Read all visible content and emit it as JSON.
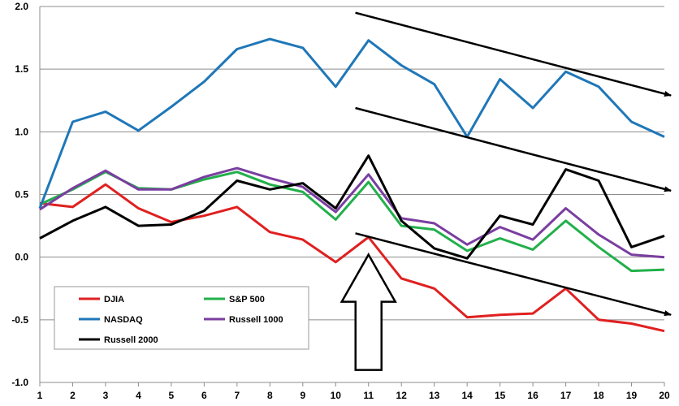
{
  "chart_data": {
    "type": "line",
    "title": "",
    "xlabel": "",
    "ylabel": "",
    "x": [
      1,
      2,
      3,
      4,
      5,
      6,
      7,
      8,
      9,
      10,
      11,
      12,
      13,
      14,
      15,
      16,
      17,
      18,
      19,
      20
    ],
    "xlim": [
      1,
      20
    ],
    "ylim": [
      -1.0,
      2.0
    ],
    "yticks": [
      "-1.0",
      "-0.5",
      "0.0",
      "0.5",
      "1.0",
      "1.5",
      "2.0"
    ],
    "xticks": [
      "1",
      "2",
      "3",
      "4",
      "5",
      "6",
      "7",
      "8",
      "9",
      "10",
      "11",
      "12",
      "13",
      "14",
      "15",
      "16",
      "17",
      "18",
      "19",
      "20"
    ],
    "grid": "horizontal",
    "legend_placement": "bottom-left",
    "series": [
      {
        "name": "DJIA",
        "color": "#e02020",
        "values": [
          0.43,
          0.4,
          0.58,
          0.39,
          0.28,
          0.33,
          0.4,
          0.2,
          0.14,
          -0.04,
          0.16,
          -0.17,
          -0.25,
          -0.48,
          -0.46,
          -0.45,
          -0.25,
          -0.5,
          -0.53,
          -0.59
        ]
      },
      {
        "name": "S&P 500",
        "color": "#22b04b",
        "values": [
          0.42,
          0.54,
          0.68,
          0.55,
          0.54,
          0.62,
          0.68,
          0.58,
          0.52,
          0.3,
          0.6,
          0.25,
          0.22,
          0.05,
          0.15,
          0.06,
          0.29,
          0.08,
          -0.11,
          -0.1
        ]
      },
      {
        "name": "NASDAQ",
        "color": "#1f77b8",
        "values": [
          0.39,
          1.08,
          1.16,
          1.01,
          1.2,
          1.4,
          1.66,
          1.74,
          1.67,
          1.36,
          1.73,
          1.53,
          1.38,
          0.96,
          1.42,
          1.19,
          1.48,
          1.36,
          1.08,
          0.96
        ]
      },
      {
        "name": "Russell 1000",
        "color": "#7a3ea0",
        "values": [
          0.38,
          0.55,
          0.69,
          0.54,
          0.54,
          0.64,
          0.71,
          0.63,
          0.56,
          0.36,
          0.66,
          0.31,
          0.27,
          0.1,
          0.24,
          0.14,
          0.39,
          0.18,
          0.02,
          0.0
        ]
      },
      {
        "name": "Russell 2000",
        "color": "#000000",
        "values": [
          0.15,
          0.29,
          0.4,
          0.25,
          0.26,
          0.37,
          0.61,
          0.54,
          0.59,
          0.39,
          0.81,
          0.29,
          0.07,
          -0.01,
          0.33,
          0.26,
          0.7,
          0.61,
          0.08,
          0.17
        ]
      }
    ],
    "annotations": [
      {
        "kind": "arrow",
        "from": [
          10.6,
          1.95
        ],
        "to": [
          20.2,
          1.29
        ]
      },
      {
        "kind": "arrow",
        "from": [
          10.6,
          1.19
        ],
        "to": [
          20.2,
          0.53
        ]
      },
      {
        "kind": "arrow",
        "from": [
          10.6,
          0.19
        ],
        "to": [
          20.2,
          -0.46
        ]
      },
      {
        "kind": "hollow-up-arrow",
        "x": 11,
        "tip": 0.02,
        "base": -0.9
      }
    ]
  }
}
